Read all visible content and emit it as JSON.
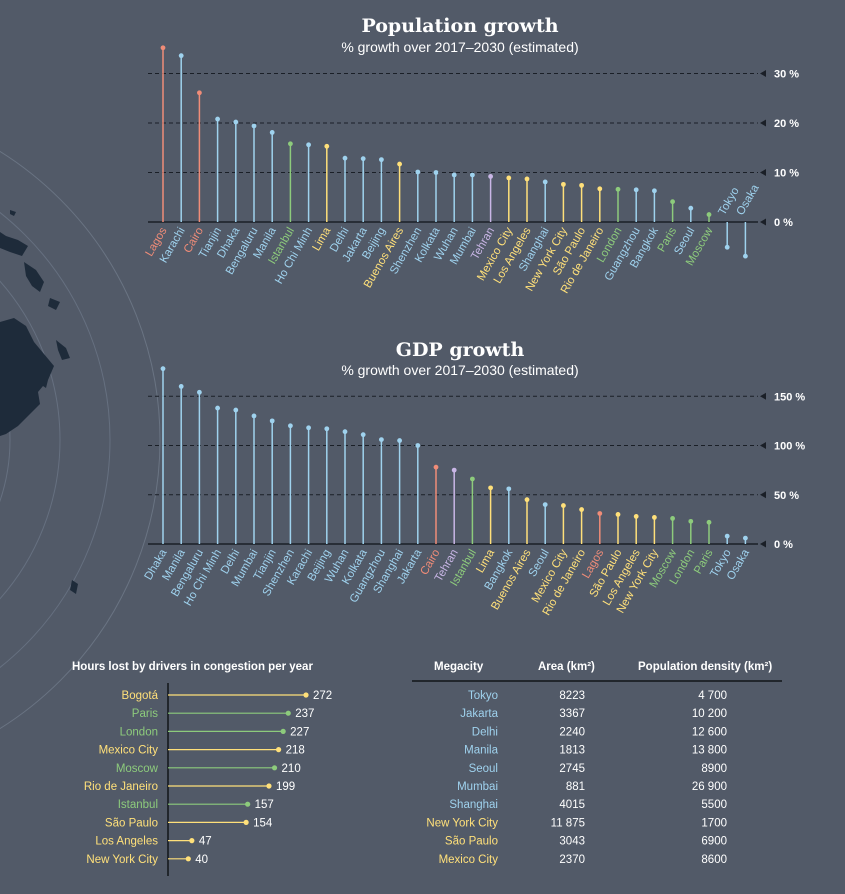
{
  "colors": {
    "background": "#525a68",
    "blue": "#9fd2ee",
    "red": "#f08c78",
    "green": "#8dcb7c",
    "yellow": "#ffe07a",
    "purple": "#c9b6e6",
    "land": "#1e2b3a"
  },
  "chart_data": [
    {
      "type": "lollipop",
      "title": "Population growth",
      "subtitle": "% growth over 2017–2030 (estimated)",
      "ylim": [
        -8,
        36
      ],
      "yticks": [
        0,
        10,
        20,
        30
      ],
      "ytick_labels": [
        "0 %",
        "10 %",
        "20 %",
        "30 %"
      ],
      "grid": true,
      "categories": [
        "Lagos",
        "Karachi",
        "Cairo",
        "Tianjin",
        "Dhaka",
        "Bengaluru",
        "Manila",
        "Istanbul",
        "Ho Chi Minh",
        "Lima",
        "Delhi",
        "Jakarta",
        "Beijing",
        "Buenos Aires",
        "Shenzhen",
        "Kolkata",
        "Wuhan",
        "Mumbai",
        "Tehran",
        "Mexico City",
        "Los Angeles",
        "Shanghai",
        "New York City",
        "São Paulo",
        "Rio de Janeiro",
        "London",
        "Guangzhou",
        "Bangkok",
        "Paris",
        "Seoul",
        "Moscow",
        "Tokyo",
        "Osaka"
      ],
      "values": [
        35.2,
        33.6,
        26.1,
        20.8,
        20.2,
        19.4,
        18.1,
        15.8,
        15.6,
        15.3,
        12.9,
        12.8,
        12.6,
        11.7,
        10.1,
        10.0,
        9.5,
        9.5,
        9.2,
        8.9,
        8.7,
        8.1,
        7.6,
        7.4,
        6.7,
        6.6,
        6.5,
        6.3,
        4.1,
        2.8,
        1.5,
        -5.1,
        -6.9
      ],
      "groups": [
        "red",
        "blue",
        "red",
        "blue",
        "blue",
        "blue",
        "blue",
        "green",
        "blue",
        "yellow",
        "blue",
        "blue",
        "blue",
        "yellow",
        "blue",
        "blue",
        "blue",
        "blue",
        "purple",
        "yellow",
        "yellow",
        "blue",
        "yellow",
        "yellow",
        "yellow",
        "green",
        "blue",
        "blue",
        "green",
        "blue",
        "green",
        "blue",
        "blue"
      ]
    },
    {
      "type": "lollipop",
      "title": "GDP growth",
      "subtitle": "% growth over 2017–2030 (estimated)",
      "ylim": [
        0,
        185
      ],
      "yticks": [
        0,
        50,
        100,
        150
      ],
      "ytick_labels": [
        "0 %",
        "50 %",
        "100 %",
        "150 %"
      ],
      "grid": true,
      "categories": [
        "Dhaka",
        "Manila",
        "Bengaluru",
        "Ho Chi Minh",
        "Delhi",
        "Mumbai",
        "Tianjin",
        "Shenzhen",
        "Karachi",
        "Beijing",
        "Wuhan",
        "Kolkata",
        "Guangzhou",
        "Shanghai",
        "Jakarta",
        "Cairo",
        "Tehran",
        "Istanbul",
        "Lima",
        "Bangkok",
        "Buenos Aires",
        "Seoul",
        "Mexico City",
        "Rio de Janeiro",
        "Lagos",
        "São Paulo",
        "Los Angeles",
        "New York City",
        "Moscow",
        "London",
        "Paris",
        "Tokyo",
        "Osaka"
      ],
      "values": [
        178,
        160,
        154,
        138,
        136,
        130,
        125,
        120,
        118,
        117,
        114,
        111,
        106,
        105,
        100,
        78,
        75,
        66,
        57,
        56,
        45,
        40,
        39,
        35,
        31,
        30,
        28,
        27,
        26,
        23,
        22,
        8,
        6
      ],
      "groups": [
        "blue",
        "blue",
        "blue",
        "blue",
        "blue",
        "blue",
        "blue",
        "blue",
        "blue",
        "blue",
        "blue",
        "blue",
        "blue",
        "blue",
        "blue",
        "red",
        "purple",
        "green",
        "yellow",
        "blue",
        "yellow",
        "blue",
        "yellow",
        "yellow",
        "red",
        "yellow",
        "yellow",
        "yellow",
        "green",
        "green",
        "green",
        "blue",
        "blue"
      ]
    },
    {
      "type": "lollipop-horizontal",
      "title": "Hours lost by drivers in congestion per year",
      "categories": [
        "Bogotá",
        "Paris",
        "London",
        "Mexico City",
        "Moscow",
        "Rio de Janeiro",
        "Istanbul",
        "São Paulo",
        "Los Angeles",
        "New York City"
      ],
      "values": [
        272,
        237,
        227,
        218,
        210,
        199,
        157,
        154,
        47,
        40
      ],
      "groups": [
        "yellow",
        "green",
        "green",
        "yellow",
        "green",
        "yellow",
        "green",
        "yellow",
        "yellow",
        "yellow"
      ],
      "xlim": [
        0,
        290
      ]
    },
    {
      "type": "table",
      "columns": [
        "Megacity",
        "Area (km²)",
        "Population density (km²)"
      ],
      "rows": [
        {
          "city": "Tokyo",
          "area": "8223",
          "density": "4 700",
          "group": "blue"
        },
        {
          "city": "Jakarta",
          "area": "3367",
          "density": "10 200",
          "group": "blue"
        },
        {
          "city": "Delhi",
          "area": "2240",
          "density": "12 600",
          "group": "blue"
        },
        {
          "city": "Manila",
          "area": "1813",
          "density": "13 800",
          "group": "blue"
        },
        {
          "city": "Seoul",
          "area": "2745",
          "density": "8900",
          "group": "blue"
        },
        {
          "city": "Mumbai",
          "area": "881",
          "density": "26 900",
          "group": "blue"
        },
        {
          "city": "Shanghai",
          "area": "4015",
          "density": "5500",
          "group": "blue"
        },
        {
          "city": "New York City",
          "area": "11 875",
          "density": "1700",
          "group": "yellow"
        },
        {
          "city": "São Paulo",
          "area": "3043",
          "density": "6900",
          "group": "yellow"
        },
        {
          "city": "Mexico City",
          "area": "2370",
          "density": "8600",
          "group": "yellow"
        }
      ]
    }
  ]
}
